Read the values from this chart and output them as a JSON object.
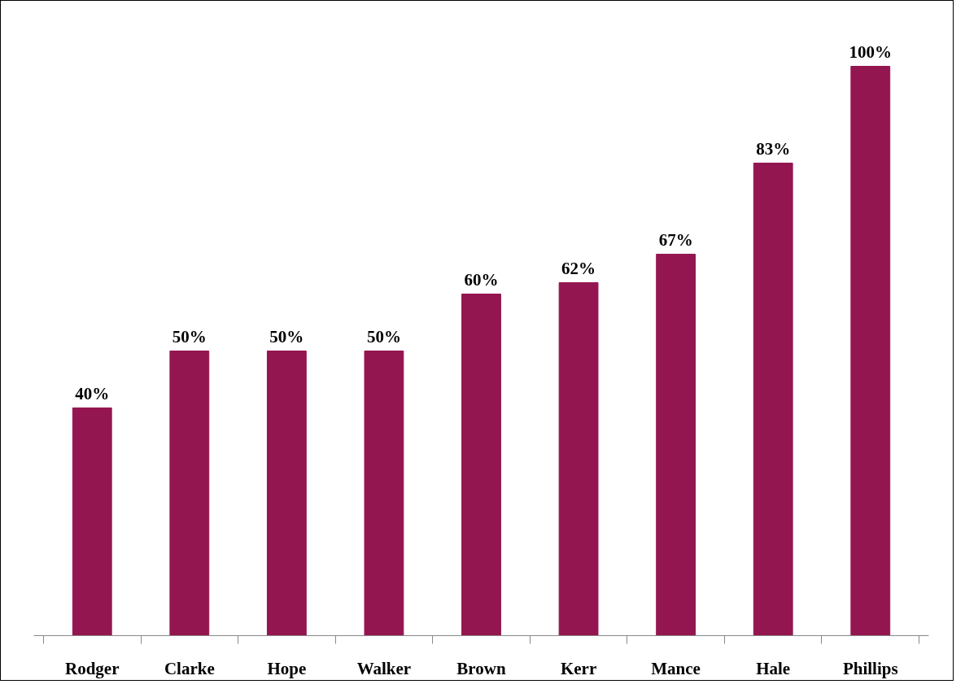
{
  "chart_data": {
    "type": "bar",
    "categories": [
      "Rodger",
      "Clarke",
      "Hope",
      "Walker",
      "Brown",
      "Kerr",
      "Mance",
      "Hale",
      "Phillips"
    ],
    "values": [
      40,
      50,
      50,
      50,
      60,
      62,
      67,
      83,
      100
    ],
    "value_labels": [
      "40%",
      "50%",
      "50%",
      "50%",
      "60%",
      "62%",
      "67%",
      "83%",
      "100%"
    ],
    "color": "#941651"
  }
}
